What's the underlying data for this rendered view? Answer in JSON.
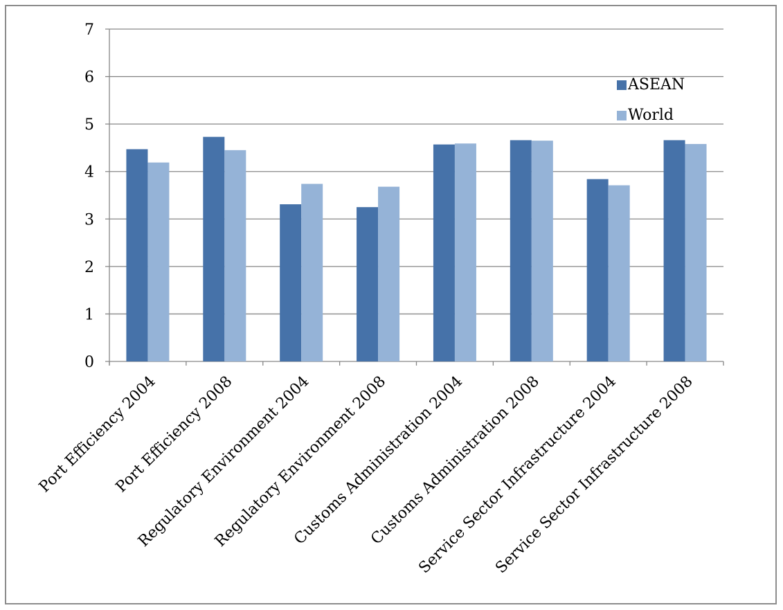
{
  "chart_data": {
    "type": "bar",
    "title": "",
    "xlabel": "",
    "ylabel": "",
    "categories": [
      "Port  Efficiency 2004",
      "Port  Efficiency 2008",
      "Regulatory Environment 2004",
      "Regulatory Environment 2008",
      "Customs Administration 2004",
      "Customs Administration 2008",
      "Service Sector Infrastructure 2004",
      "Service Sector Infrastructure 2008"
    ],
    "series": [
      {
        "name": "ASEAN",
        "color": "#4672a9",
        "values": [
          4.47,
          4.73,
          3.31,
          3.25,
          4.57,
          4.66,
          3.84,
          4.66
        ]
      },
      {
        "name": "World",
        "color": "#95b3d7",
        "values": [
          4.19,
          4.45,
          3.74,
          3.68,
          4.59,
          4.65,
          3.71,
          4.58
        ]
      }
    ],
    "ylim": [
      0,
      7
    ],
    "yticks": [
      "0",
      "1",
      "2",
      "3",
      "4",
      "5",
      "6",
      "7"
    ],
    "grid": true,
    "legend_position": "top-right",
    "gridline_color": "#868686"
  }
}
